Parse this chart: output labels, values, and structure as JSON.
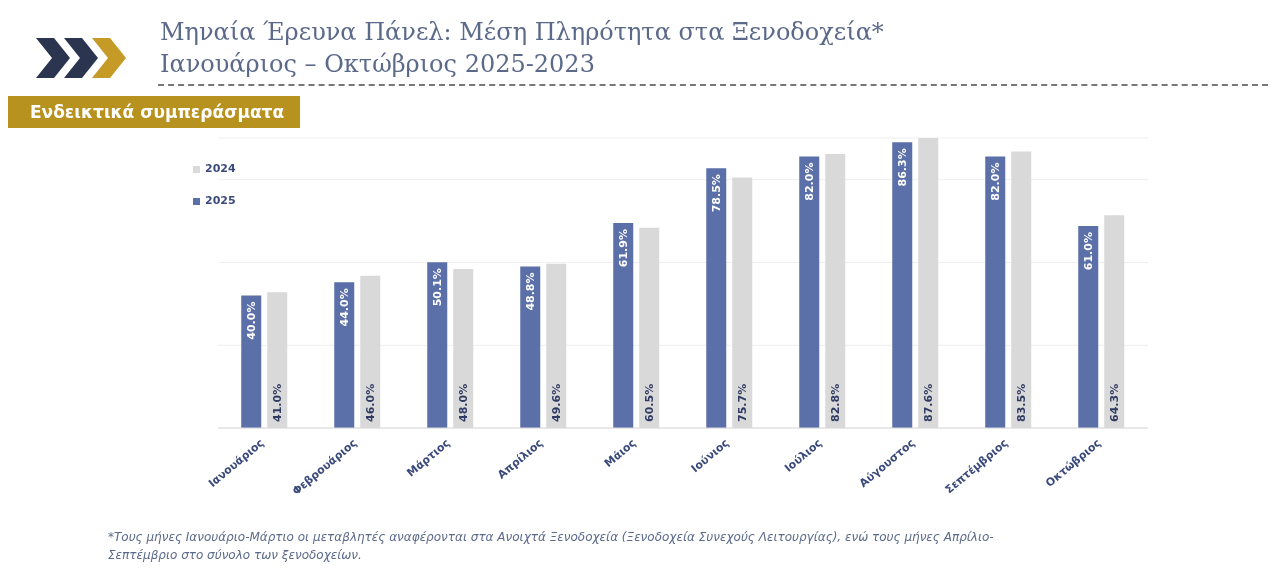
{
  "chart_data": {
    "type": "bar",
    "title": "Μηναία Έρευνα Πάνελ: Μέση Πληρότητα στα Ξενοδοχεία*",
    "subtitle": "Ιανουάριος – Οκτώβριος 2025-2023",
    "annotations": [
      "Ενδεικτικά συμπεράσματα",
      "*Τους μήνες Ιανουάριο-Μάρτιο οι μεταβλητές αναφέρονται στα Ανοιχτά Ξενοδοχεία (Ξενοδοχεία Συνεχούς Λειτουργίας), ενώ τους μήνες Απρίλιο- Σεπτέμβριο στο σύνολο των ξενοδοχείων."
    ],
    "categories": [
      "Ιανουάριος",
      "Φεβρουάριος",
      "Μάρτιος",
      "Απρίλιος",
      "Μάιος",
      "Ιούνιος",
      "Ιούλιος",
      "Αύγουστος",
      "Σεπτέμβριος",
      "Οκτώβριος"
    ],
    "series": [
      {
        "name": "2025",
        "color": "#5b6fa8",
        "values": [
          40.0,
          44.0,
          50.1,
          48.8,
          61.9,
          78.5,
          82.0,
          86.3,
          82.0,
          61.0
        ],
        "value_labels": [
          "40.0%",
          "44.0%",
          "50.1%",
          "48.8%",
          "61.9%",
          "78.5%",
          "82.0%",
          "86.3%",
          "82.0%",
          "61.0%"
        ]
      },
      {
        "name": "2024",
        "color": "#d9d9d9",
        "values": [
          41.0,
          46.0,
          48.0,
          49.6,
          60.5,
          75.7,
          82.8,
          87.6,
          83.5,
          64.3
        ],
        "value_labels": [
          "41.0%",
          "46.0%",
          "48.0%",
          "49.6%",
          "60.5%",
          "75.7%",
          "82.8%",
          "87.6%",
          "83.5%",
          "64.3%"
        ]
      }
    ],
    "grid": "y",
    "legend": "top left"
  }
}
